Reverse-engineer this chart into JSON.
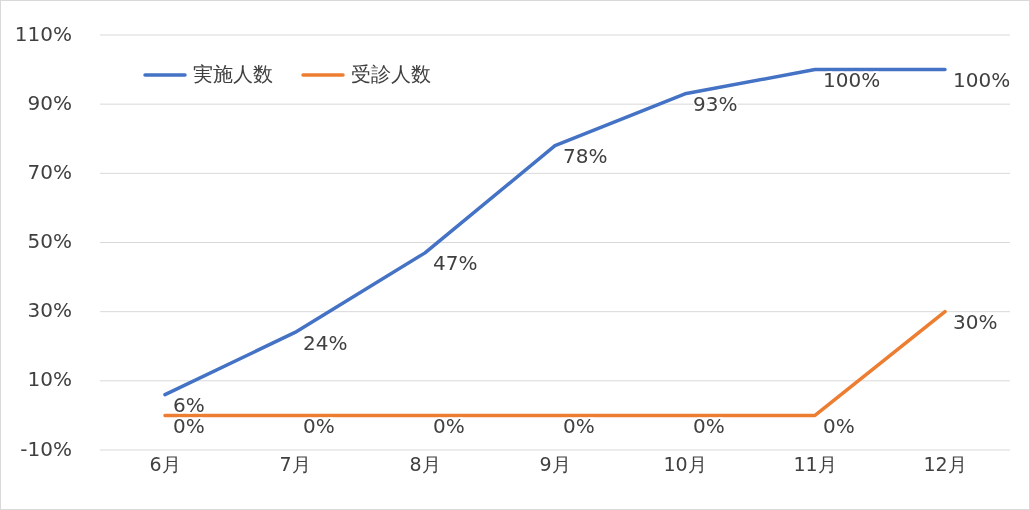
{
  "chart_data": {
    "type": "line",
    "categories": [
      "6月",
      "7月",
      "8月",
      "9月",
      "10月",
      "11月",
      "12月"
    ],
    "series": [
      {
        "name": "実施人数",
        "color": "#4472c4",
        "values": [
          6,
          24,
          47,
          78,
          93,
          100,
          100
        ],
        "value_labels": [
          "6%",
          "24%",
          "47%",
          "78%",
          "93%",
          "100%",
          "100%"
        ]
      },
      {
        "name": "受診人数",
        "color": "#ed7d31",
        "values": [
          0,
          0,
          0,
          0,
          0,
          0,
          30
        ],
        "value_labels": [
          "0%",
          "0%",
          "0%",
          "0%",
          "0%",
          "0%",
          "30%"
        ]
      }
    ],
    "ylim": [
      -10,
      110
    ],
    "yticks": [
      {
        "value": -10,
        "label": "-10%"
      },
      {
        "value": 10,
        "label": "10%"
      },
      {
        "value": 30,
        "label": "30%"
      },
      {
        "value": 50,
        "label": "50%"
      },
      {
        "value": 70,
        "label": "70%"
      },
      {
        "value": 90,
        "label": "90%"
      },
      {
        "value": 110,
        "label": "110%"
      }
    ],
    "grid": "y",
    "legend": "top left",
    "marker": "none",
    "line_style": "solid"
  }
}
